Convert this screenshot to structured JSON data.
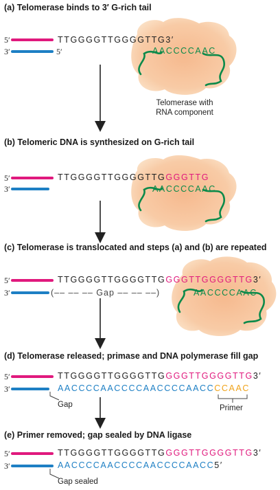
{
  "panels": {
    "a": {
      "heading": "(a) Telomerase binds to 3′ G-rich tail",
      "top_5": "5′",
      "bottom_3": "3′",
      "top_seq": "TTGGGGTTGGGGTTG",
      "top_3": "3′",
      "bottom_5": "5′",
      "rna_seq": "AACCCCAAC",
      "enzyme_label_1": "Telomerase with",
      "enzyme_label_2": "RNA component"
    },
    "b": {
      "heading": "(b) Telomeric DNA is synthesized on G-rich tail",
      "top_5": "5′",
      "bottom_3": "3′",
      "top_seq": "TTGGGGTTGGGGTTG",
      "new_seq": "GGGTTG",
      "rna_seq": "AACCCCAAC"
    },
    "c": {
      "heading": "(c) Telomerase is translocated and steps (a) and (b) are repeated",
      "top_5": "5′",
      "bottom_3": "3′",
      "top_seq": "TTGGGGTTGGGGTTG",
      "new_seq": "GGGTTGGGGTTG",
      "top_3": "3′",
      "gap_text": "(–– –– –– Gap –– –– ––)",
      "rna_seq": "AACCCCAAC"
    },
    "d": {
      "heading": "(d) Telomerase released; primase and DNA polymerase fill gap",
      "top_5": "5′",
      "bottom_3": "3′",
      "top_seq": "TTGGGGTTGGGGTTG",
      "new_seq": "GGGTTGGGGTTG",
      "top_3": "3′",
      "fill_seq": "AACCCCAACCCCAACCCCAACC",
      "primer_seq": "CCAAC",
      "gap_label": "Gap",
      "primer_label": "Primer"
    },
    "e": {
      "heading": "(e) Primer removed; gap sealed by DNA ligase",
      "top_5": "5′",
      "bottom_3": "3′",
      "top_seq": "TTGGGGTTGGGGTTG",
      "new_seq": "GGGTTGGGGTTG",
      "top_3": "3′",
      "fill_seq": "AACCCCAACCCCAACCCCAACC",
      "bottom_5": "5′",
      "sealed_label": "Gap sealed"
    }
  },
  "colors": {
    "template_strand": "#e0197d",
    "new_strand": "#1d7fc4",
    "rna": "#0b8a4a",
    "primer": "#f0a31a",
    "enzyme_fill": "#f7c9a0",
    "enzyme_edge": "#f4d9b8"
  }
}
